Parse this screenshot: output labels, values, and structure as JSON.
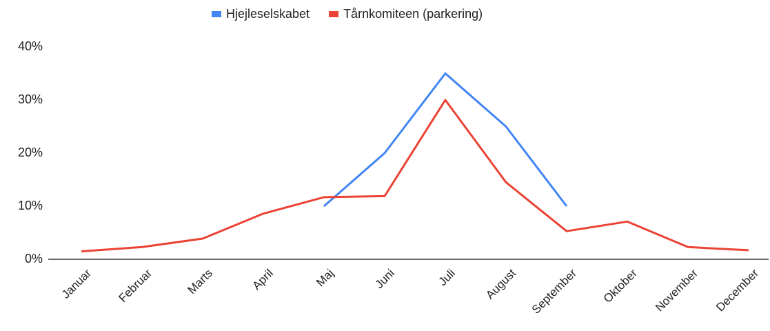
{
  "chart_data": {
    "type": "line",
    "categories": [
      "Januar",
      "Februar",
      "Marts",
      "April",
      "Maj",
      "Juni",
      "Juli",
      "August",
      "September",
      "Oktober",
      "November",
      "December"
    ],
    "series": [
      {
        "name": "Hjejleselskabet",
        "color": "#4285f4",
        "values": [
          null,
          null,
          null,
          null,
          10,
          20,
          35,
          25,
          10,
          null,
          null,
          null
        ]
      },
      {
        "name": "Tårnkomiteen (parkering)",
        "color": "#ea4335",
        "values": [
          1.5,
          2.3,
          3.9,
          8.6,
          11.7,
          11.9,
          30,
          14.5,
          5.3,
          7.1,
          2.3,
          1.7
        ]
      }
    ],
    "ylim": [
      0,
      40
    ],
    "yticks": [
      {
        "value": 0,
        "label": "0%"
      },
      {
        "value": 10,
        "label": "10%"
      },
      {
        "value": 20,
        "label": "20%"
      },
      {
        "value": 30,
        "label": "30%"
      },
      {
        "value": 40,
        "label": "40%"
      }
    ],
    "grid": false,
    "legend": "top"
  }
}
